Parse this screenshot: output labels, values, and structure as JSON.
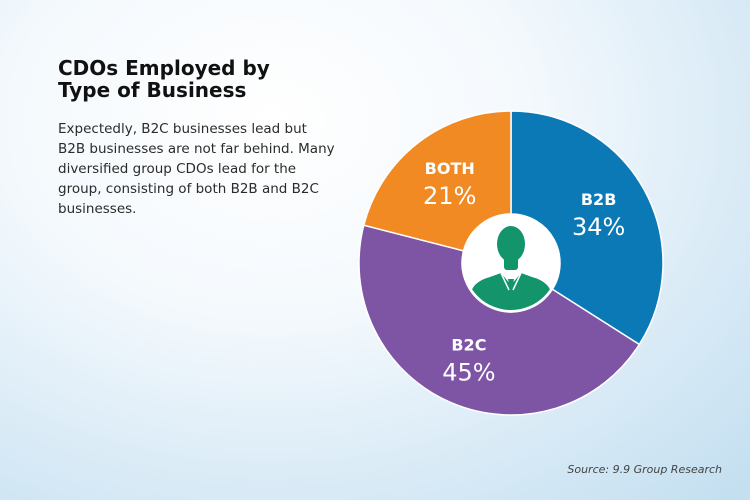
{
  "title": "CDOs Employed by Type of Business",
  "description": "Expectedly, B2C businesses lead but B2B businesses are not far behind. Many diversified group CDOs lead for the group, consisting of both B2B and B2C businesses.",
  "source": "Source: 9.9 Group Research",
  "chart_data": {
    "type": "pie",
    "variant": "donut",
    "categories": [
      "B2B",
      "B2C",
      "BOTH"
    ],
    "values": [
      34,
      45,
      21
    ],
    "value_labels": [
      "34%",
      "45%",
      "21%"
    ],
    "colors": [
      "#0a79b5",
      "#7e54a4",
      "#f28a24"
    ],
    "center_icon": "businessman-icon",
    "center_icon_color": "#13946b"
  }
}
